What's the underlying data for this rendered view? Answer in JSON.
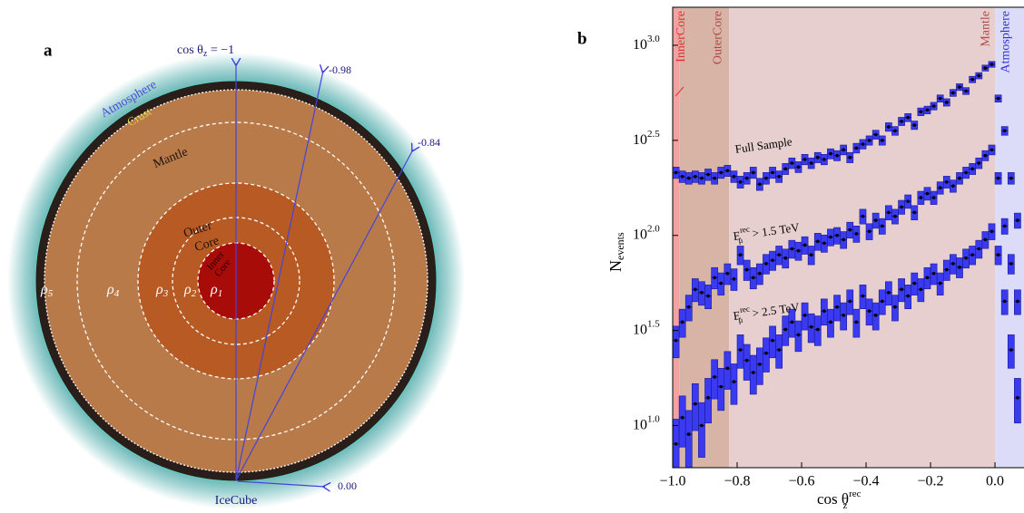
{
  "diagram": {
    "panel": "a",
    "zenith": {
      "vertical": {
        "main": "cos θ",
        "sub": "z",
        "rest": " = −1"
      },
      "others": [
        "-0.98",
        "-0.84",
        "0.00"
      ]
    },
    "detector": "IceCube",
    "layers": [
      "Atmosphere",
      "Crust",
      "Mantle"
    ],
    "outer_core": [
      "Outer",
      "Core"
    ],
    "inner_core": [
      "Inner",
      "Core"
    ],
    "densities": [
      {
        "main": "ρ",
        "sub": "5"
      },
      {
        "main": "ρ",
        "sub": "4"
      },
      {
        "main": "ρ",
        "sub": "3"
      },
      {
        "main": "ρ",
        "sub": "2"
      },
      {
        "main": "ρ",
        "sub": "1"
      }
    ]
  },
  "chart_data": {
    "type": "histogram",
    "panel": "b",
    "x_label": {
      "main": "cos θ",
      "sub": "z",
      "sup": "rec"
    },
    "y_label": {
      "main": "N",
      "sub": "events"
    },
    "log_y": true,
    "xlim": [
      -1.0,
      0.09
    ],
    "ylim": [
      6.0,
      1585
    ],
    "xticks": [
      {
        "value": -1.0,
        "label": "−1.0"
      },
      {
        "value": -0.8,
        "label": "−0.8"
      },
      {
        "value": -0.6,
        "label": "−0.6"
      },
      {
        "value": -0.4,
        "label": "−0.4"
      },
      {
        "value": -0.2,
        "label": "−0.2"
      },
      {
        "value": 0.0,
        "label": "0.0"
      }
    ],
    "yticks": [
      {
        "value": 10,
        "label": "10",
        "exponent": "1.0"
      },
      {
        "value": 31.62,
        "label": "10",
        "exponent": "1.5"
      },
      {
        "value": 100,
        "label": "10",
        "exponent": "2.0"
      },
      {
        "value": 316.2,
        "label": "10",
        "exponent": "2.5"
      },
      {
        "value": 1000,
        "label": "10",
        "exponent": "3.0"
      }
    ],
    "regions": [
      {
        "name": "InnerCore",
        "range": [
          -1.0,
          -0.98
        ],
        "color": "#f2a2a2",
        "text_color": "#e03030"
      },
      {
        "name": "OuterCore",
        "range": [
          -0.98,
          -0.825
        ],
        "color": "#d8b4a6",
        "text_color": "#b04a4a"
      },
      {
        "name": "Mantle",
        "range": [
          -0.825,
          0.0
        ],
        "color": "#e8cfcf",
        "text_color": "#b04a4a"
      },
      {
        "name": "Atmosphere",
        "range": [
          0.0,
          0.09
        ],
        "color": "#dcdcf8",
        "text_color": "#3030d0"
      }
    ],
    "bins": [
      -1.0,
      -0.98,
      -0.96,
      -0.94,
      -0.92,
      -0.9,
      -0.88,
      -0.86,
      -0.84,
      -0.82,
      -0.8,
      -0.78,
      -0.76,
      -0.74,
      -0.72,
      -0.7,
      -0.68,
      -0.66,
      -0.64,
      -0.62,
      -0.6,
      -0.58,
      -0.56,
      -0.54,
      -0.52,
      -0.5,
      -0.48,
      -0.46,
      -0.44,
      -0.42,
      -0.4,
      -0.38,
      -0.36,
      -0.34,
      -0.32,
      -0.3,
      -0.28,
      -0.26,
      -0.24,
      -0.22,
      -0.2,
      -0.18,
      -0.16,
      -0.14,
      -0.12,
      -0.1,
      -0.08,
      -0.06,
      -0.04,
      -0.02,
      0.0,
      0.02,
      0.04,
      0.06,
      0.08
    ],
    "series": [
      {
        "label": {
          "main": "Full Sample"
        },
        "color": "#3a3af0",
        "values": [
          214,
          204,
          200,
          204,
          200,
          209,
          200,
          214,
          219,
          204,
          191,
          200,
          214,
          186,
          200,
          214,
          204,
          224,
          240,
          229,
          251,
          240,
          257,
          251,
          269,
          263,
          282,
          257,
          288,
          302,
          316,
          339,
          316,
          372,
          355,
          398,
          417,
          380,
          447,
          457,
          479,
          525,
          501,
          562,
          603,
          575,
          661,
          692,
          759,
          794,
          525,
          355,
          200,
          120
        ],
        "errors": [
          14.6,
          14.3,
          14.1,
          14.3,
          14.1,
          14.5,
          14.1,
          14.6,
          14.8,
          14.3,
          13.8,
          14.1,
          14.6,
          13.6,
          14.1,
          14.6,
          14.3,
          15.0,
          15.5,
          15.1,
          15.8,
          15.5,
          16.0,
          15.8,
          16.4,
          16.2,
          16.8,
          16.0,
          17.0,
          17.4,
          17.8,
          18.4,
          17.8,
          19.3,
          18.8,
          19.9,
          20.4,
          19.5,
          21.1,
          21.4,
          21.9,
          22.9,
          22.4,
          23.7,
          24.6,
          24.0,
          25.7,
          26.3,
          27.5,
          28.2,
          22.9,
          18.8,
          14.1,
          11.0
        ]
      },
      {
        "label": {
          "main": "E",
          "sup": "rec",
          "sub": "μ",
          "rest": " > 1.5 TeV"
        },
        "color": "#3a3af0",
        "values": [
          28,
          35,
          42,
          52,
          50,
          48,
          60,
          56,
          63,
          59,
          79,
          66,
          60,
          63,
          71,
          74,
          79,
          76,
          85,
          83,
          89,
          79,
          93,
          91,
          98,
          100,
          95,
          107,
          102,
          126,
          105,
          120,
          112,
          132,
          126,
          141,
          151,
          132,
          158,
          166,
          158,
          178,
          191,
          182,
          200,
          214,
          224,
          240,
          263,
          282,
          200,
          112,
          71,
          45
        ],
        "errors": [
          5.3,
          5.9,
          6.5,
          7.2,
          7.1,
          6.9,
          7.7,
          7.5,
          7.9,
          7.7,
          8.9,
          8.1,
          7.7,
          7.9,
          8.4,
          8.6,
          8.9,
          8.7,
          9.2,
          9.1,
          9.4,
          8.9,
          9.6,
          9.5,
          9.9,
          10.0,
          9.7,
          10.3,
          10.1,
          11.2,
          10.2,
          11.0,
          10.6,
          11.5,
          11.2,
          11.9,
          12.3,
          11.5,
          12.6,
          12.9,
          12.6,
          13.3,
          13.8,
          13.5,
          14.1,
          14.6,
          15.0,
          15.5,
          16.2,
          16.8,
          14.1,
          10.6,
          8.4,
          6.7
        ]
      },
      {
        "label": {
          "main": "E",
          "sup": "rec",
          "sub": "μ",
          "rest": " > 2.5 TeV"
        },
        "color": "#3a3af0",
        "values": [
          8,
          11,
          9,
          13,
          10,
          14,
          18,
          16,
          20,
          17,
          25,
          22,
          19,
          21,
          24,
          28,
          25,
          32,
          35,
          30,
          38,
          33,
          32,
          40,
          35,
          42,
          38,
          45,
          35,
          48,
          40,
          38,
          45,
          50,
          42,
          52,
          48,
          56,
          52,
          60,
          63,
          56,
          66,
          71,
          68,
          76,
          79,
          85,
          95,
          105,
          79,
          45,
          25,
          14
        ],
        "errors": [
          2.8,
          3.3,
          3.0,
          3.6,
          3.2,
          3.7,
          4.2,
          4.0,
          4.5,
          4.1,
          5.0,
          4.7,
          4.4,
          4.6,
          4.9,
          5.3,
          5.0,
          5.7,
          5.9,
          5.5,
          6.2,
          5.7,
          5.7,
          6.3,
          5.9,
          6.5,
          6.2,
          6.7,
          5.9,
          6.9,
          6.3,
          6.2,
          6.7,
          7.1,
          6.5,
          7.2,
          6.9,
          7.5,
          7.2,
          7.7,
          7.9,
          7.5,
          8.1,
          8.4,
          8.2,
          8.7,
          8.9,
          9.2,
          9.7,
          10.2,
          8.9,
          6.7,
          5.0,
          3.7
        ]
      }
    ]
  }
}
